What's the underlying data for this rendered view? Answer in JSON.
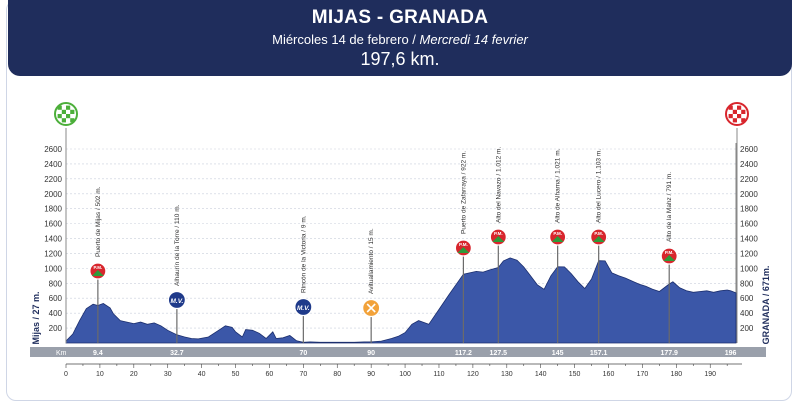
{
  "header": {
    "title": "MIJAS - GRANADA",
    "subtitle_es": "Miércoles 14 de febrero / ",
    "subtitle_fr": "Mercredi 14 fevrier",
    "distance": "197,6 km."
  },
  "colors": {
    "header_bg": "#1f2d5c",
    "profile_fill": "#3b57a8",
    "profile_line": "#1c2f6e",
    "gpm_marker": "#d8262d",
    "mv_marker": "#1f3a8a",
    "feed_marker": "#f2a23a",
    "start_flag": "#4caf3a",
    "finish_flag": "#d8262d",
    "km_bar": "#9aa0ab"
  },
  "labels": {
    "start": "Mijas / 27 m.",
    "finish": "GRANADA / 671m.",
    "km_header": "Km",
    "mv_text": "M.V.",
    "gpm_text": "P.M."
  },
  "chart_data": {
    "type": "area",
    "xlim": [
      0,
      197.6
    ],
    "ylim": [
      0,
      2600
    ],
    "x_ticks": [
      0,
      10,
      20,
      30,
      40,
      50,
      60,
      70,
      80,
      90,
      100,
      110,
      120,
      130,
      140,
      150,
      160,
      170,
      180,
      190
    ],
    "y_ticks": [
      200,
      400,
      600,
      800,
      1000,
      1200,
      1400,
      1600,
      1800,
      2000,
      2200,
      2400,
      2600
    ],
    "series": [
      {
        "x": [
          0,
          2,
          4,
          6,
          8,
          9.4,
          11,
          13,
          14,
          16,
          18,
          20,
          22,
          24,
          26,
          28,
          30,
          32.7,
          35,
          37,
          39,
          42,
          45,
          47,
          49,
          50,
          52,
          53,
          55,
          57,
          59,
          61,
          62,
          64,
          66,
          68,
          70,
          72,
          75,
          80,
          85,
          88,
          90,
          93,
          96,
          98,
          100,
          102,
          104,
          107,
          110,
          113,
          115,
          117.2,
          119,
          121,
          123,
          125,
          127.5,
          129,
          131,
          133,
          135,
          137,
          139,
          141,
          143,
          145,
          147,
          149,
          151,
          153,
          155,
          157.1,
          159,
          161,
          163,
          165,
          167,
          169,
          171,
          173,
          175,
          177.9,
          179,
          181,
          183,
          185,
          187,
          189,
          191,
          193,
          195,
          196,
          197.6
        ],
        "y": [
          27,
          120,
          300,
          460,
          520,
          502,
          530,
          470,
          390,
          300,
          280,
          260,
          280,
          250,
          270,
          230,
          170,
          110,
          80,
          60,
          55,
          80,
          170,
          230,
          210,
          150,
          80,
          180,
          170,
          130,
          60,
          150,
          60,
          70,
          100,
          30,
          9,
          15,
          10,
          10,
          10,
          15,
          15,
          25,
          60,
          90,
          140,
          250,
          300,
          250,
          450,
          650,
          780,
          922,
          940,
          960,
          950,
          980,
          1012,
          1100,
          1140,
          1110,
          1020,
          900,
          780,
          720,
          900,
          1021,
          1020,
          930,
          820,
          730,
          860,
          1103,
          1100,
          940,
          900,
          870,
          830,
          790,
          760,
          720,
          690,
          791,
          820,
          740,
          700,
          680,
          690,
          700,
          680,
          700,
          710,
          700,
          671
        ]
      }
    ],
    "climbs": [
      {
        "km": 9.4,
        "name": "Puerto de Mijas / 502 m."
      },
      {
        "km": 117.2,
        "name": "Puerto de Zafarraya / 922 m."
      },
      {
        "km": 127.5,
        "name": "Alto del Navazo / 1.012 m."
      },
      {
        "km": 145,
        "name": "Alto de Alhama / 1.021 m."
      },
      {
        "km": 157.1,
        "name": "Alto del Lucero / 1.103 m."
      },
      {
        "km": 177.9,
        "name": "Alto de la Mahz / 791 m."
      }
    ],
    "sprints": [
      {
        "km": 32.7,
        "name": "Alhaurín de la Torre / 110 m."
      },
      {
        "km": 70,
        "name": "Rincón de la Victoria / 9 m."
      }
    ],
    "feed": [
      {
        "km": 90,
        "name": "Avituallamiento / 15 m."
      }
    ],
    "km_markers": [
      "9.4",
      "32.7",
      "70",
      "90",
      "117.2",
      "127.5",
      "145",
      "157.1",
      "177.9",
      "196"
    ]
  }
}
